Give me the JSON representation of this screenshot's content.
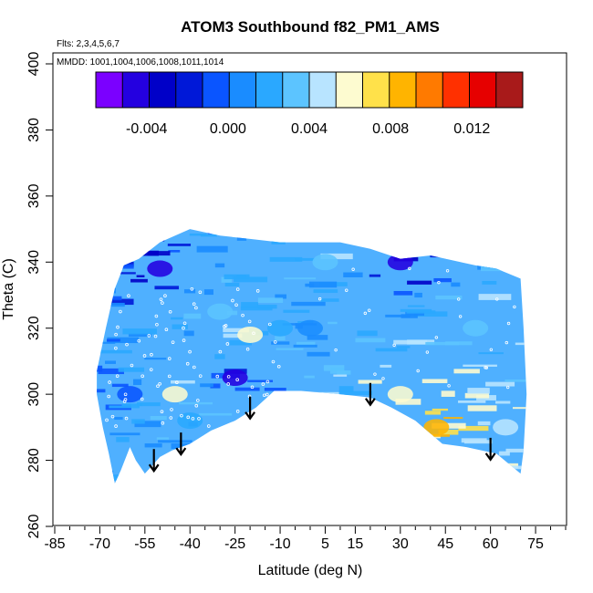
{
  "chart_data": {
    "type": "heatmap",
    "title": "ATOM3 Southbound f82_PM1_AMS",
    "annotations": {
      "flights": "Flts: 2,3,4,5,6,7",
      "dates": "MMDD: 1001,1004,1006,1008,1011,1014"
    },
    "xlabel": "Latitude (deg N)",
    "ylabel": "Theta (C)",
    "xlim": [
      -85,
      85
    ],
    "ylim": [
      260,
      400
    ],
    "xticks": [
      -85,
      -70,
      -55,
      -40,
      -25,
      -10,
      5,
      15,
      30,
      45,
      60,
      75
    ],
    "yticks": [
      260,
      280,
      300,
      320,
      340,
      360,
      380,
      400
    ],
    "colorbar": {
      "range": [
        -0.0065,
        0.0145
      ],
      "ticks": [
        -0.004,
        0.0,
        0.004,
        0.008,
        0.012
      ],
      "tick_labels": [
        "-0.004",
        "0.000",
        "0.004",
        "0.008",
        "0.012"
      ],
      "colors": [
        "#7b00ff",
        "#2400e0",
        "#0000c8",
        "#0018d8",
        "#0a55ff",
        "#1a8cff",
        "#2aa8ff",
        "#5cc4ff",
        "#b8e4ff",
        "#fdfbd0",
        "#ffe14a",
        "#ffb400",
        "#ff7a00",
        "#ff3000",
        "#e60000",
        "#a81a1a"
      ]
    },
    "upper_boundary": [
      [
        -71,
        307
      ],
      [
        -68,
        320
      ],
      [
        -65,
        332
      ],
      [
        -62,
        339
      ],
      [
        -57,
        341
      ],
      [
        -50,
        346
      ],
      [
        -40,
        350
      ],
      [
        -30,
        348
      ],
      [
        -20,
        347
      ],
      [
        -10,
        346
      ],
      [
        0,
        346
      ],
      [
        10,
        346
      ],
      [
        20,
        344
      ],
      [
        30,
        341
      ],
      [
        40,
        342
      ],
      [
        50,
        340
      ],
      [
        55,
        339
      ],
      [
        62,
        338
      ],
      [
        70,
        335
      ],
      [
        71,
        320
      ],
      [
        72,
        300
      ],
      [
        71,
        283
      ],
      [
        70,
        276
      ]
    ],
    "lower_boundary": [
      [
        70,
        276
      ],
      [
        62,
        282
      ],
      [
        52,
        284
      ],
      [
        44,
        285
      ],
      [
        35,
        292
      ],
      [
        27,
        296
      ],
      [
        20,
        299
      ],
      [
        10,
        300
      ],
      [
        -3,
        301
      ],
      [
        -12,
        301
      ],
      [
        -18,
        296
      ],
      [
        -25,
        292
      ],
      [
        -33,
        289
      ],
      [
        -40,
        285
      ],
      [
        -46,
        283
      ],
      [
        -50,
        281
      ],
      [
        -52,
        279
      ],
      [
        -55,
        276
      ],
      [
        -58,
        280
      ],
      [
        -60,
        284
      ],
      [
        -63,
        277
      ],
      [
        -65,
        273
      ],
      [
        -67,
        282
      ],
      [
        -69,
        290
      ],
      [
        -71,
        300
      ]
    ],
    "field_values": [
      {
        "lat": -60,
        "theta": 300,
        "value": -0.001
      },
      {
        "lat": -50,
        "theta": 338,
        "value": -0.004
      },
      {
        "lat": -45,
        "theta": 300,
        "value": 0.006
      },
      {
        "lat": -40,
        "theta": 292,
        "value": 0.002
      },
      {
        "lat": -30,
        "theta": 325,
        "value": 0.003
      },
      {
        "lat": -25,
        "theta": 305,
        "value": -0.005
      },
      {
        "lat": -20,
        "theta": 318,
        "value": 0.006
      },
      {
        "lat": -10,
        "theta": 320,
        "value": 0.002
      },
      {
        "lat": 0,
        "theta": 320,
        "value": 0.001
      },
      {
        "lat": 5,
        "theta": 340,
        "value": 0.004
      },
      {
        "lat": 30,
        "theta": 340,
        "value": -0.005
      },
      {
        "lat": 30,
        "theta": 300,
        "value": 0.006
      },
      {
        "lat": 42,
        "theta": 290,
        "value": 0.009
      },
      {
        "lat": 55,
        "theta": 320,
        "value": 0.004
      },
      {
        "lat": 65,
        "theta": 290,
        "value": 0.005
      }
    ],
    "arrows_lat": [
      -52,
      -43,
      -20,
      20,
      60
    ],
    "grid": false,
    "legend_placement": "top"
  }
}
